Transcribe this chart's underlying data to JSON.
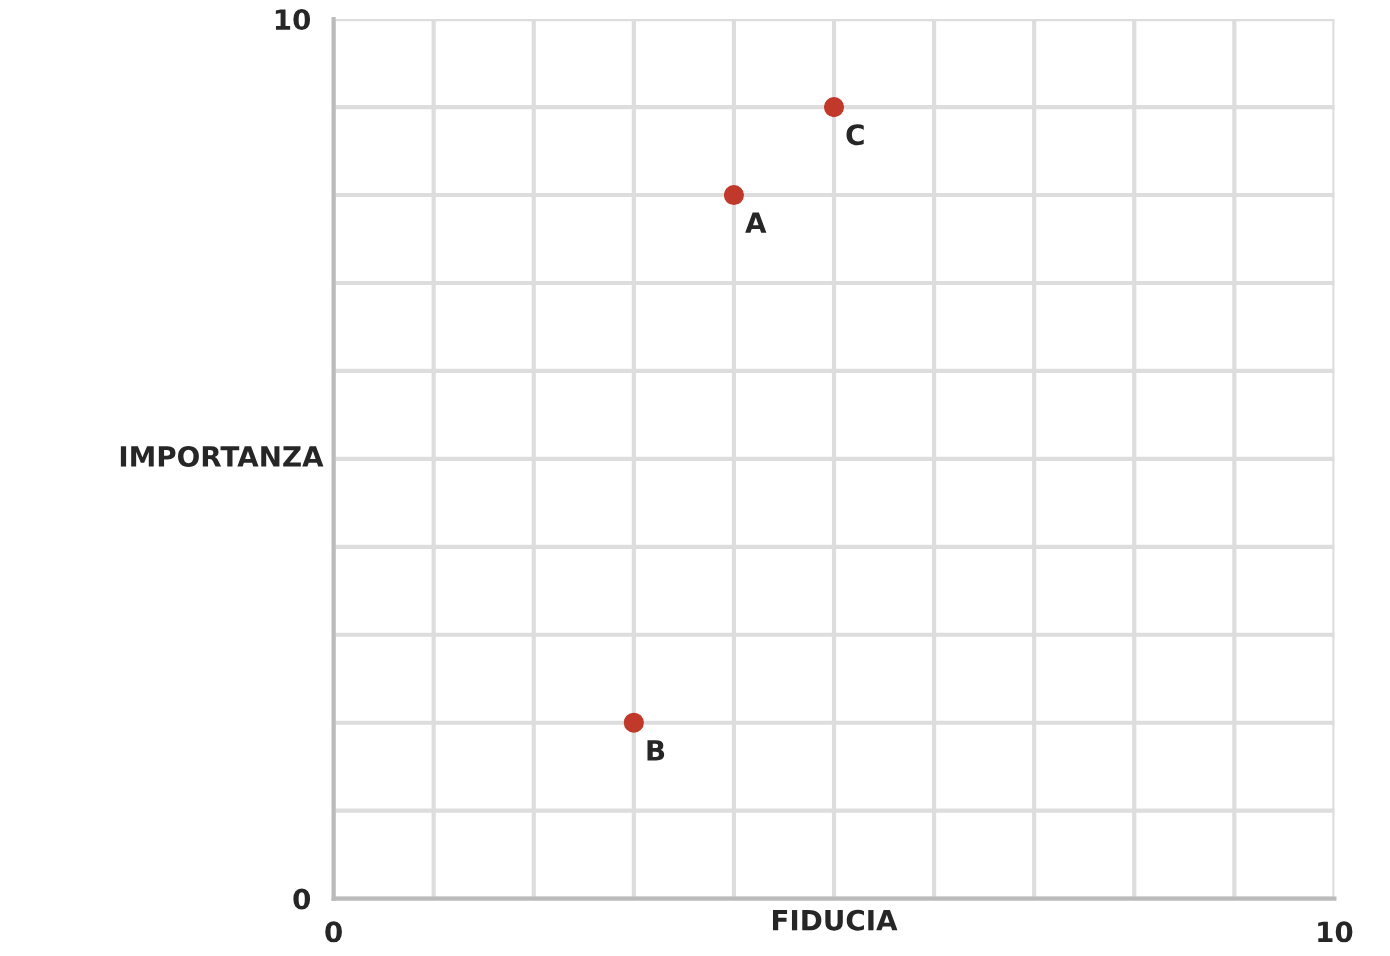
{
  "chart_data": {
    "type": "scatter",
    "xlabel": "FIDUCIA",
    "ylabel": "IMPORTANZA",
    "x": [
      4,
      3,
      5
    ],
    "series": [
      {
        "color": "#c0392b",
        "values": [
          8,
          2,
          9
        ]
      }
    ],
    "annotations": [
      {
        "text": "A",
        "x": 4,
        "y": 8
      },
      {
        "text": "B",
        "x": 3,
        "y": 2
      },
      {
        "text": "C",
        "x": 5,
        "y": 9
      }
    ],
    "xlim": [
      0,
      10
    ],
    "ylim": [
      0,
      10
    ],
    "xticks": [
      0,
      {
        "value": 1,
        "label": null
      },
      {
        "value": 2,
        "label": null
      },
      {
        "value": 3,
        "label": null
      },
      {
        "value": 4,
        "label": null
      },
      {
        "value": 5,
        "label": null
      },
      {
        "value": 6,
        "label": null
      },
      {
        "value": 7,
        "label": null
      },
      {
        "value": 8,
        "label": null
      },
      {
        "value": 9,
        "label": null
      },
      10
    ],
    "yticks": [
      0,
      {
        "value": 1,
        "label": null
      },
      {
        "value": 2,
        "label": null
      },
      {
        "value": 3,
        "label": null
      },
      {
        "value": 4,
        "label": null
      },
      {
        "value": 5,
        "label": null
      },
      {
        "value": 6,
        "label": null
      },
      {
        "value": 7,
        "label": null
      },
      {
        "value": 8,
        "label": null
      },
      {
        "value": 9,
        "label": null
      },
      10
    ],
    "grid": true,
    "marker": "circle"
  }
}
